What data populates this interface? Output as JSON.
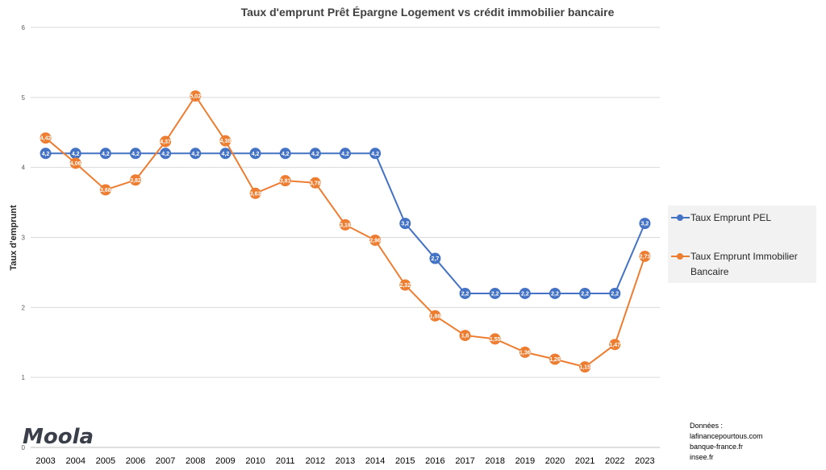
{
  "chart_data": {
    "type": "line",
    "title": "Taux d'emprunt Prêt Épargne Logement vs crédit immobilier bancaire",
    "xlabel": "",
    "ylabel": "Taux d'emprunt",
    "ylim": [
      0,
      6
    ],
    "yticks": [
      "0",
      "1",
      "2",
      "3",
      "4",
      "5",
      "6"
    ],
    "grid": true,
    "legend_position": "right",
    "categories": [
      "2003",
      "2004",
      "2005",
      "2006",
      "2007",
      "2008",
      "2009",
      "2010",
      "2011",
      "2012",
      "2013",
      "2014",
      "2015",
      "2016",
      "2017",
      "2018",
      "2019",
      "2020",
      "2021",
      "2022",
      "2023"
    ],
    "series": [
      {
        "name": "Taux Emprunt PEL",
        "color": "#4472C4",
        "values": [
          4.2,
          4.2,
          4.2,
          4.2,
          4.2,
          4.2,
          4.2,
          4.2,
          4.2,
          4.2,
          4.2,
          4.2,
          3.2,
          2.7,
          2.2,
          2.2,
          2.2,
          2.2,
          2.2,
          2.2,
          3.2
        ],
        "labels": [
          "4,2",
          "4,2",
          "4,2",
          "4,2",
          "4,2",
          "4,2",
          "4,2",
          "4,2",
          "4,2",
          "4,2",
          "4,2",
          "4,2",
          "3,2",
          "2,7",
          "2,2",
          "2,2",
          "2,2",
          "2,2",
          "2,2",
          "2,2",
          "3,2"
        ]
      },
      {
        "name": "Taux Emprunt Immobilier Bancaire",
        "color": "#ED7D31",
        "values": [
          4.42,
          4.06,
          3.68,
          3.82,
          4.37,
          5.02,
          4.38,
          3.63,
          3.81,
          3.78,
          3.18,
          2.96,
          2.32,
          1.88,
          1.6,
          1.55,
          1.36,
          1.26,
          1.15,
          1.47,
          2.73
        ],
        "labels": [
          "4,42",
          "4,06",
          "3,68",
          "3,82",
          "4,37",
          "5,02",
          "4,38",
          "3,63",
          "3,81",
          "3,78",
          "3,18",
          "2,96",
          "2,32",
          "1,88",
          "1,6",
          "1,55",
          "1,36",
          "1,26",
          "1,15",
          "1,47",
          "2,73"
        ]
      }
    ]
  },
  "legend": {
    "pel_label": "Taux Emprunt PEL",
    "bank_label_line1": "Taux Emprunt Immobilier",
    "bank_label_line2": "Bancaire"
  },
  "logo_text": "Moola",
  "sources": {
    "heading": "Données :",
    "lines": [
      "lafinancepourtous.com",
      "banque-france.fr",
      "insee.fr"
    ]
  }
}
